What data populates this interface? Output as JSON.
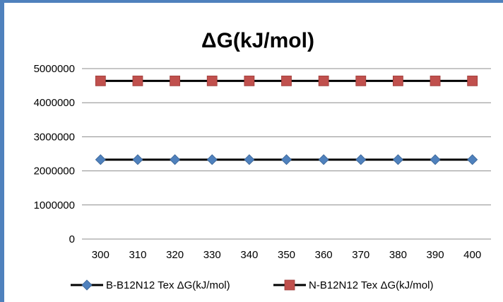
{
  "chart_data": {
    "type": "line",
    "title": "ΔG(kJ/mol)",
    "xlabel": "",
    "ylabel": "",
    "x": [
      300,
      310,
      320,
      330,
      340,
      350,
      360,
      370,
      380,
      390,
      400
    ],
    "ylim": [
      0,
      5000000
    ],
    "y_ticks": [
      "0",
      "1000000",
      "2000000",
      "3000000",
      "4000000",
      "5000000"
    ],
    "grid": "horizontal",
    "legend_position": "bottom",
    "series": [
      {
        "name": "B-B12N12 Tex  ΔG(kJ/mol)",
        "marker": "diamond",
        "color": "#4f81bd",
        "line_color": "#000000",
        "values": [
          2330000,
          2330000,
          2330000,
          2330000,
          2330000,
          2330000,
          2330000,
          2330000,
          2330000,
          2330000,
          2330000
        ]
      },
      {
        "name": "N-B12N12 Tex ΔG(kJ/mol)",
        "marker": "square",
        "color": "#c0504d",
        "line_color": "#000000",
        "values": [
          4640000,
          4640000,
          4640000,
          4640000,
          4640000,
          4640000,
          4640000,
          4640000,
          4640000,
          4640000,
          4640000
        ]
      }
    ]
  }
}
